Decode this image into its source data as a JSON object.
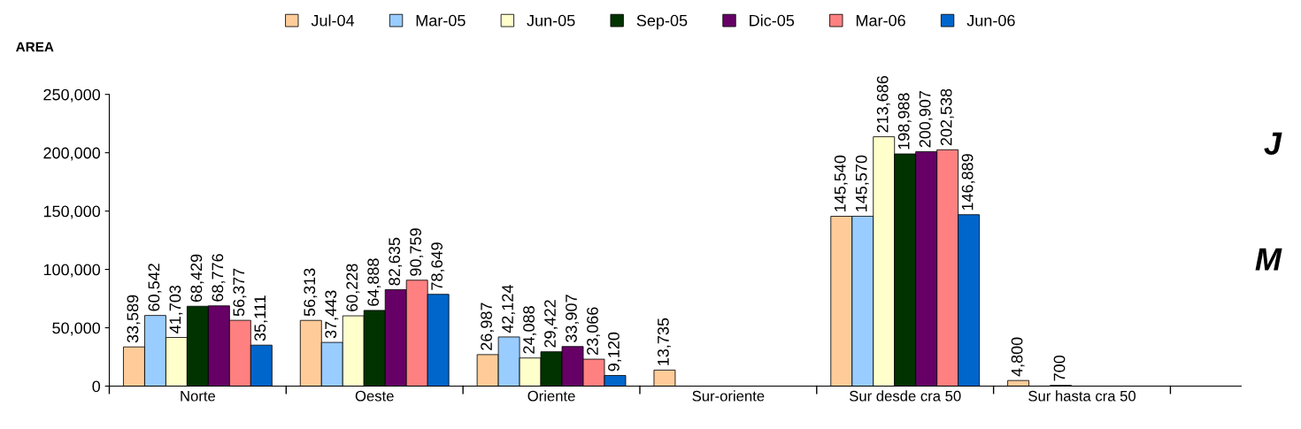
{
  "chart_data": {
    "type": "bar",
    "ylabel": "AREA",
    "categories": [
      "Norte",
      "Oeste",
      "Oriente",
      "Sur-oriente",
      "Sur desde cra 50",
      "Sur hasta cra 50"
    ],
    "series": [
      {
        "name": "Jul-04",
        "color": "#ffcc99",
        "values": [
          33589,
          56313,
          26987,
          13735,
          145540,
          4800
        ],
        "value_labels": [
          "33,589",
          "56,313",
          "26,987",
          "13,735",
          "145,540",
          "4,800"
        ]
      },
      {
        "name": "Mar-05",
        "color": "#99ccff",
        "values": [
          60542,
          37443,
          42124,
          null,
          145570,
          null
        ],
        "value_labels": [
          "60,542",
          "37,443",
          "42,124",
          null,
          "145,570",
          null
        ]
      },
      {
        "name": "Jun-05",
        "color": "#ffffcc",
        "values": [
          41703,
          60228,
          24088,
          null,
          213686,
          700
        ],
        "value_labels": [
          "41,703",
          "60,228",
          "24,088",
          null,
          "213,686",
          "700"
        ]
      },
      {
        "name": "Sep-05",
        "color": "#003300",
        "values": [
          68429,
          64888,
          29422,
          null,
          198988,
          null
        ],
        "value_labels": [
          "68,429",
          "64,888",
          "29,422",
          null,
          "198,988",
          null
        ]
      },
      {
        "name": "Dic-05",
        "color": "#660066",
        "values": [
          68776,
          82635,
          33907,
          null,
          200907,
          null
        ],
        "value_labels": [
          "68,776",
          "82,635",
          "33,907",
          null,
          "200,907",
          null
        ]
      },
      {
        "name": "Mar-06",
        "color": "#ff8080",
        "values": [
          56377,
          90759,
          23066,
          null,
          202538,
          null
        ],
        "value_labels": [
          "56,377",
          "90,759",
          "23,066",
          null,
          "202,538",
          null
        ]
      },
      {
        "name": "Jun-06",
        "color": "#0066cc",
        "values": [
          35111,
          78649,
          9120,
          null,
          146889,
          null
        ],
        "value_labels": [
          "35,111",
          "78,649",
          "9,120",
          null,
          "146,889",
          null
        ]
      }
    ],
    "ylim": [
      0,
      250000
    ],
    "yticks": [
      {
        "value": 0,
        "label": "0"
      },
      {
        "value": 50000,
        "label": "50,000"
      },
      {
        "value": 100000,
        "label": "100,000"
      },
      {
        "value": 150000,
        "label": "150,000"
      },
      {
        "value": 200000,
        "label": "200,000"
      },
      {
        "value": 250000,
        "label": "250,000"
      }
    ],
    "grid": false,
    "legend": "top",
    "annotations": [
      "J",
      "M"
    ]
  }
}
